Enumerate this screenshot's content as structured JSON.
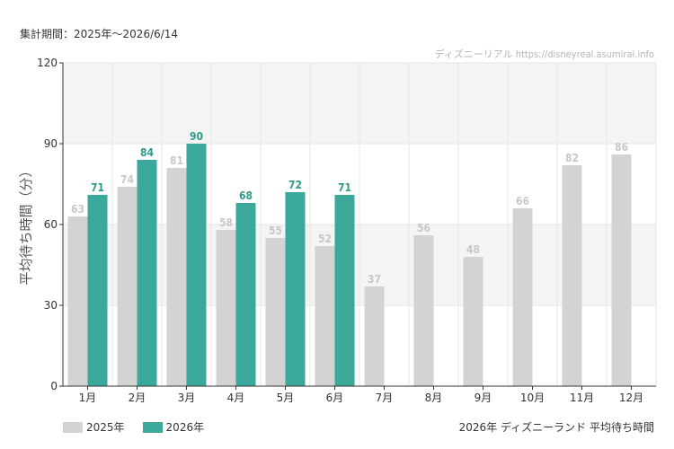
{
  "header": {
    "period": "集計期間：2025年～2026/6/14",
    "watermark": "ディズニーリアル https://disneyreal.asumirai.info"
  },
  "footer": {
    "title": "2026年 ディズニーランド 平均待ち時間"
  },
  "colors": {
    "series_2025": "#d3d3d3",
    "series_2026": "#3aa89b",
    "label_2025": "#c8c8c8",
    "label_2026": "#2f9a8c",
    "band": "#f4f4f4",
    "grid": "#e6e6e6",
    "axis": "#333333"
  },
  "chart_data": {
    "type": "bar",
    "ylabel": "平均待ち時間（分）",
    "xlabel": "",
    "ylim": [
      0,
      120
    ],
    "yticks": [
      0,
      30,
      60,
      90,
      120
    ],
    "grid": true,
    "legend_position": "bottom-left",
    "categories": [
      "1月",
      "2月",
      "3月",
      "4月",
      "5月",
      "6月",
      "7月",
      "8月",
      "9月",
      "10月",
      "11月",
      "12月"
    ],
    "series": [
      {
        "name": "2025年",
        "values": [
          63,
          74,
          81,
          58,
          55,
          52,
          37,
          56,
          48,
          66,
          82,
          86
        ]
      },
      {
        "name": "2026年",
        "values": [
          71,
          84,
          90,
          68,
          72,
          71,
          null,
          null,
          null,
          null,
          null,
          null
        ]
      }
    ]
  }
}
